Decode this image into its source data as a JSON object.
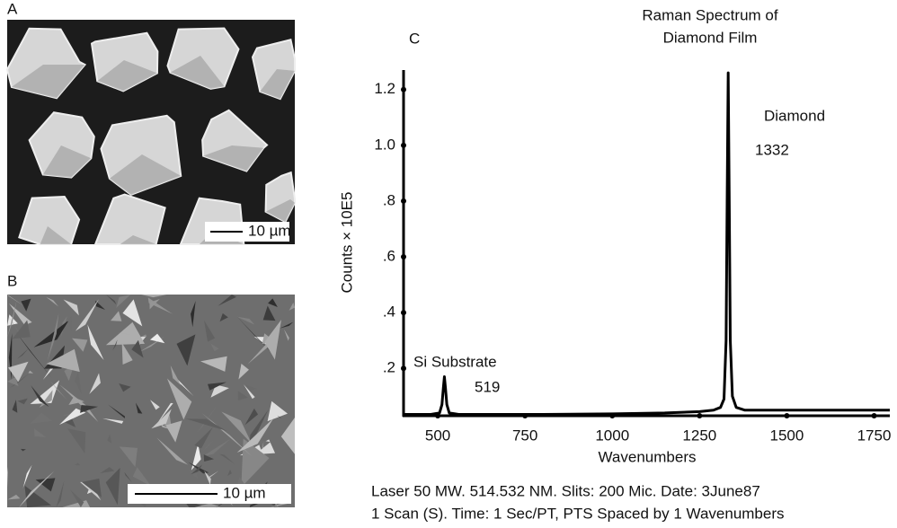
{
  "panels": [
    {
      "label": "A",
      "scale_bar": "10 µm"
    },
    {
      "label": "B",
      "scale_bar": "10 µm"
    }
  ],
  "chart_data": {
    "type": "line",
    "panel_label": "C",
    "title": [
      "Raman Spectrum of",
      "Diamond Film"
    ],
    "x_label": "Wavenumbers",
    "y_label": "Counts × 10E5",
    "annotations": [
      "Diamond",
      "1332",
      "Si Substrate",
      "519"
    ],
    "series": [
      {
        "name": "Raman spectrum",
        "color": "#000000",
        "x": [
          402,
          480,
          505,
          512,
          516,
          519,
          522,
          526,
          533,
          560,
          800,
          1000,
          1150,
          1250,
          1290,
          1310,
          1320,
          1326,
          1329,
          1332,
          1335,
          1338,
          1344,
          1355,
          1380,
          1500,
          1795
        ],
        "values": [
          0.035,
          0.035,
          0.04,
          0.07,
          0.13,
          0.17,
          0.13,
          0.07,
          0.04,
          0.035,
          0.035,
          0.037,
          0.04,
          0.045,
          0.05,
          0.06,
          0.09,
          0.3,
          0.8,
          1.26,
          0.8,
          0.3,
          0.1,
          0.06,
          0.05,
          0.05,
          0.05
        ]
      }
    ],
    "xlim": [
      402,
      1795
    ],
    "ylim": [
      0.03,
      1.27
    ],
    "xticks": [
      500,
      750,
      1000,
      1250,
      1500,
      1750
    ],
    "yticks": [
      {
        "value": 0.2,
        "label": ".2"
      },
      {
        "value": 0.4,
        "label": ".4"
      },
      {
        "value": 0.6,
        "label": ".6"
      },
      {
        "value": 0.8,
        "label": ".8"
      },
      {
        "value": 1,
        "label": "1.0"
      },
      1.2
    ]
  },
  "caption": [
    "Laser 50 MW. 514.532 NM. Slits: 200 Mic. Date: 3June87",
    "1 Scan (S). Time: 1 Sec/PT, PTS Spaced by 1 Wavenumbers"
  ]
}
